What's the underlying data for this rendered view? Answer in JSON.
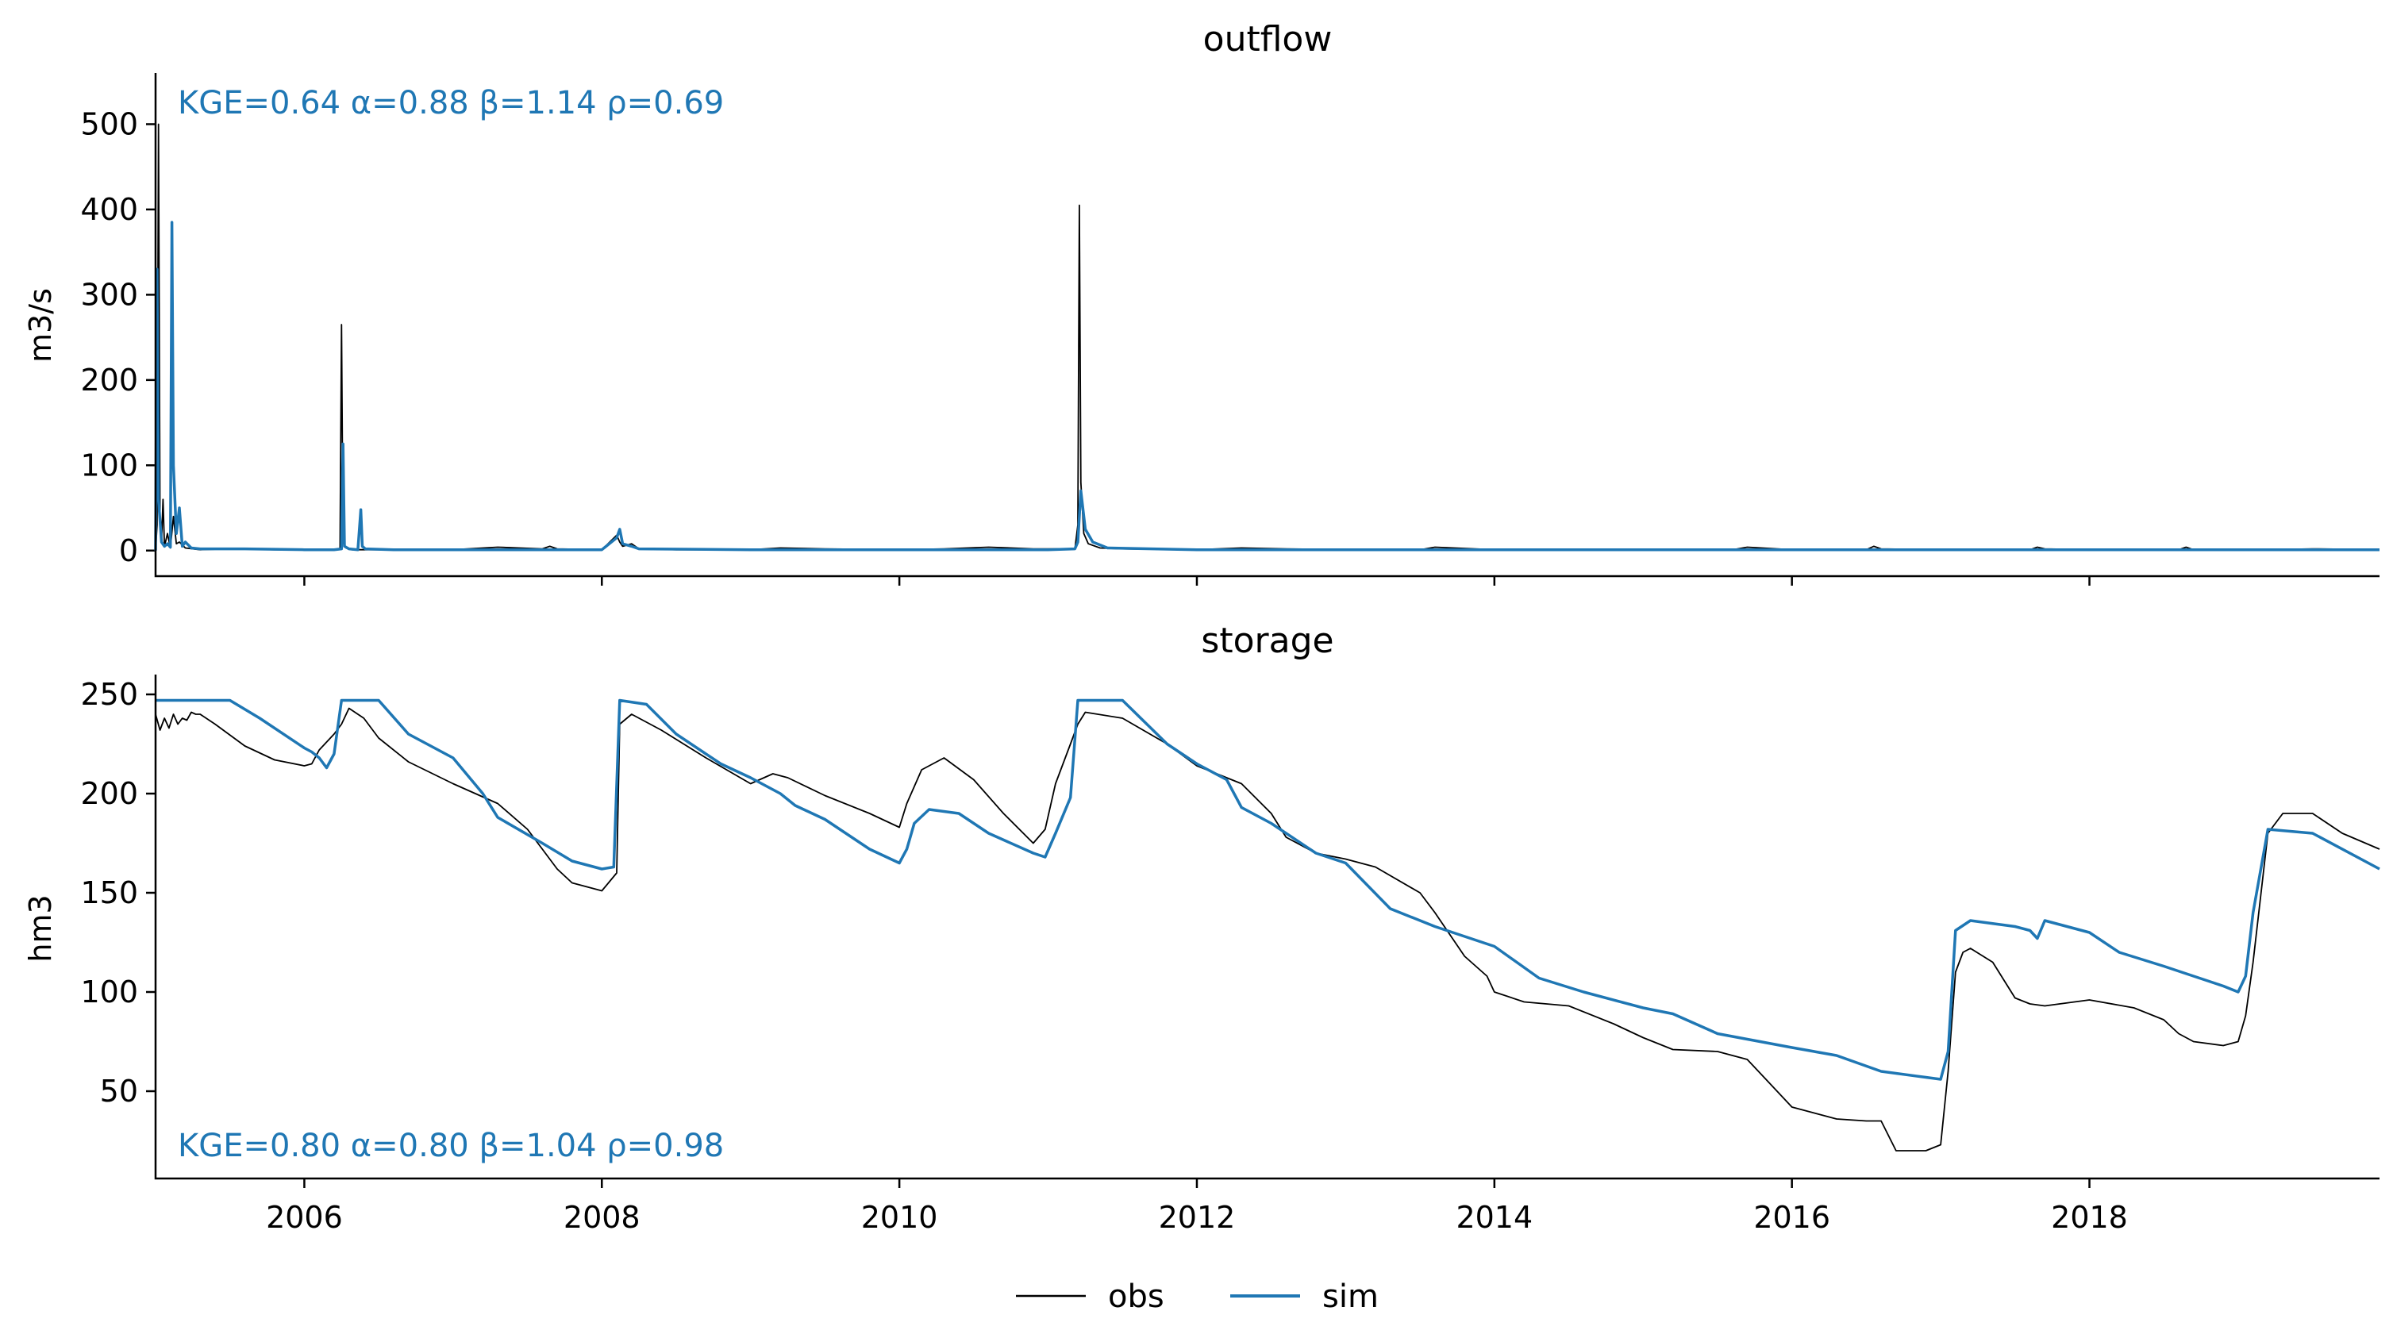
{
  "chart_data": [
    {
      "type": "line",
      "title": "outflow",
      "xlabel": "",
      "ylabel": "m3/s",
      "xlim": [
        2005.0,
        2019.95
      ],
      "ylim": [
        -30,
        560
      ],
      "yticks": [
        0,
        100,
        200,
        300,
        400,
        500
      ],
      "xticks": [
        2006,
        2008,
        2010,
        2012,
        2014,
        2016,
        2018
      ],
      "show_xtick_labels": false,
      "annotation": "KGE=0.64  α=0.88  β=1.14  ρ=0.69",
      "grid": false,
      "series": [
        {
          "name": "obs",
          "color": "#000000",
          "x": [
            2005.0,
            2005.01,
            2005.02,
            2005.03,
            2005.04,
            2005.05,
            2005.06,
            2005.08,
            2005.1,
            2005.12,
            2005.14,
            2005.16,
            2005.2,
            2005.3,
            2005.5,
            2005.8,
            2006.0,
            2006.2,
            2006.24,
            2006.25,
            2006.26,
            2006.28,
            2006.32,
            2006.5,
            2006.8,
            2007.0,
            2007.3,
            2007.6,
            2007.65,
            2007.7,
            2008.0,
            2008.1,
            2008.12,
            2008.14,
            2008.2,
            2008.25,
            2008.5,
            2008.8,
            2009.0,
            2009.2,
            2009.5,
            2010.0,
            2010.3,
            2010.6,
            2010.9,
            2011.18,
            2011.2,
            2011.21,
            2011.22,
            2011.24,
            2011.27,
            2011.35,
            2011.5,
            2012.0,
            2012.3,
            2012.6,
            2013.0,
            2013.5,
            2013.6,
            2014.0,
            2014.6,
            2015.0,
            2015.6,
            2015.7,
            2016.0,
            2016.5,
            2016.55,
            2016.6,
            2017.0,
            2017.6,
            2017.65,
            2017.7,
            2018.0,
            2018.6,
            2018.65,
            2018.7,
            2019.2,
            2019.5,
            2019.95
          ],
          "y": [
            0,
            30,
            500,
            40,
            10,
            60,
            5,
            20,
            3,
            40,
            8,
            10,
            3,
            1,
            2,
            1,
            1,
            1,
            2,
            265,
            10,
            3,
            1,
            1,
            1,
            1,
            4,
            2,
            5,
            2,
            1,
            18,
            10,
            5,
            8,
            2,
            1,
            1,
            1,
            3,
            2,
            1,
            2,
            4,
            2,
            2,
            30,
            405,
            80,
            20,
            8,
            3,
            2,
            1,
            3,
            2,
            1,
            1,
            4,
            1,
            1,
            1,
            1,
            4,
            1,
            1,
            5,
            2,
            1,
            1,
            4,
            2,
            1,
            1,
            4,
            1,
            1,
            2,
            1
          ]
        },
        {
          "name": "sim",
          "color": "#1f77b4",
          "x": [
            2005.0,
            2005.01,
            2005.02,
            2005.04,
            2005.06,
            2005.08,
            2005.1,
            2005.11,
            2005.12,
            2005.14,
            2005.16,
            2005.18,
            2005.2,
            2005.24,
            2005.3,
            2005.6,
            2006.0,
            2006.2,
            2006.25,
            2006.26,
            2006.27,
            2006.3,
            2006.36,
            2006.38,
            2006.39,
            2006.41,
            2006.6,
            2007.0,
            2008.0,
            2008.1,
            2008.12,
            2008.14,
            2008.2,
            2008.25,
            2009.0,
            2010.0,
            2011.0,
            2011.18,
            2011.2,
            2011.22,
            2011.25,
            2011.3,
            2011.4,
            2012.0,
            2014.0,
            2016.0,
            2018.0,
            2019.95
          ],
          "y": [
            0,
            330,
            60,
            10,
            5,
            8,
            4,
            385,
            100,
            20,
            50,
            5,
            10,
            3,
            2,
            2,
            1,
            1,
            2,
            125,
            5,
            2,
            1,
            48,
            5,
            2,
            1,
            1,
            1,
            15,
            25,
            8,
            5,
            2,
            1,
            1,
            1,
            2,
            10,
            70,
            25,
            10,
            3,
            1,
            1,
            1,
            1,
            1
          ]
        }
      ]
    },
    {
      "type": "line",
      "title": "storage",
      "xlabel": "",
      "ylabel": "hm3",
      "xlim": [
        2005.0,
        2019.95
      ],
      "ylim": [
        6,
        260
      ],
      "yticks": [
        50,
        100,
        150,
        200,
        250
      ],
      "xticks": [
        2006,
        2008,
        2010,
        2012,
        2014,
        2016,
        2018
      ],
      "xtick_labels": [
        "2006",
        "2008",
        "2010",
        "2012",
        "2014",
        "2016",
        "2018"
      ],
      "show_xtick_labels": true,
      "annotation": "KGE=0.80  α=0.80  β=1.04  ρ=0.98",
      "grid": false,
      "series": [
        {
          "name": "obs",
          "color": "#000000",
          "x": [
            2005.0,
            2005.03,
            2005.06,
            2005.09,
            2005.12,
            2005.15,
            2005.18,
            2005.21,
            2005.24,
            2005.27,
            2005.3,
            2005.4,
            2005.6,
            2005.8,
            2006.0,
            2006.05,
            2006.1,
            2006.2,
            2006.25,
            2006.3,
            2006.4,
            2006.5,
            2006.7,
            2007.0,
            2007.3,
            2007.5,
            2007.7,
            2007.8,
            2008.0,
            2008.1,
            2008.12,
            2008.2,
            2008.4,
            2008.7,
            2009.0,
            2009.15,
            2009.25,
            2009.5,
            2009.8,
            2010.0,
            2010.05,
            2010.15,
            2010.3,
            2010.5,
            2010.7,
            2010.9,
            2010.98,
            2011.05,
            2011.15,
            2011.2,
            2011.25,
            2011.5,
            2011.8,
            2012.0,
            2012.3,
            2012.5,
            2012.6,
            2012.8,
            2013.0,
            2013.2,
            2013.5,
            2013.6,
            2013.8,
            2013.95,
            2014.0,
            2014.2,
            2014.5,
            2014.8,
            2015.0,
            2015.2,
            2015.5,
            2015.7,
            2015.8,
            2016.0,
            2016.3,
            2016.5,
            2016.6,
            2016.7,
            2016.9,
            2017.0,
            2017.05,
            2017.1,
            2017.15,
            2017.2,
            2017.35,
            2017.5,
            2017.6,
            2017.7,
            2017.8,
            2018.0,
            2018.3,
            2018.5,
            2018.6,
            2018.7,
            2018.9,
            2019.0,
            2019.05,
            2019.1,
            2019.2,
            2019.3,
            2019.5,
            2019.7,
            2019.95
          ],
          "y": [
            240,
            232,
            238,
            233,
            240,
            235,
            238,
            237,
            241,
            240,
            240,
            235,
            224,
            217,
            214,
            215,
            222,
            230,
            235,
            243,
            238,
            228,
            216,
            205,
            195,
            182,
            162,
            155,
            151,
            160,
            235,
            240,
            232,
            218,
            205,
            210,
            208,
            199,
            190,
            183,
            195,
            212,
            218,
            207,
            190,
            175,
            182,
            205,
            225,
            235,
            241,
            238,
            225,
            214,
            205,
            190,
            178,
            170,
            167,
            163,
            150,
            140,
            118,
            108,
            100,
            95,
            93,
            84,
            77,
            71,
            70,
            66,
            58,
            42,
            36,
            35,
            35,
            20,
            20,
            23,
            60,
            110,
            120,
            122,
            115,
            97,
            94,
            93,
            94,
            96,
            92,
            86,
            79,
            75,
            73,
            75,
            88,
            115,
            180,
            190,
            190,
            180,
            172
          ]
        },
        {
          "name": "sim",
          "color": "#1f77b4",
          "x": [
            2005.0,
            2005.5,
            2005.7,
            2006.0,
            2006.05,
            2006.1,
            2006.15,
            2006.2,
            2006.25,
            2006.5,
            2006.7,
            2007.0,
            2007.2,
            2007.3,
            2007.6,
            2007.8,
            2008.0,
            2008.08,
            2008.12,
            2008.3,
            2008.5,
            2008.8,
            2009.0,
            2009.2,
            2009.3,
            2009.5,
            2009.8,
            2010.0,
            2010.05,
            2010.1,
            2010.2,
            2010.4,
            2010.6,
            2010.9,
            2010.98,
            2011.05,
            2011.15,
            2011.2,
            2011.22,
            2011.5,
            2011.8,
            2012.0,
            2012.2,
            2012.3,
            2012.5,
            2012.8,
            2013.0,
            2013.3,
            2013.6,
            2014.0,
            2014.3,
            2014.6,
            2015.0,
            2015.2,
            2015.5,
            2016.0,
            2016.3,
            2016.6,
            2016.9,
            2017.0,
            2017.05,
            2017.1,
            2017.2,
            2017.5,
            2017.6,
            2017.65,
            2017.7,
            2018.0,
            2018.2,
            2018.5,
            2018.9,
            2019.0,
            2019.05,
            2019.1,
            2019.2,
            2019.5,
            2019.95
          ],
          "y": [
            247,
            247,
            238,
            223,
            221,
            218,
            213,
            220,
            247,
            247,
            230,
            218,
            200,
            188,
            175,
            166,
            162,
            163,
            247,
            245,
            230,
            215,
            208,
            200,
            194,
            187,
            172,
            165,
            172,
            185,
            192,
            190,
            180,
            170,
            168,
            180,
            198,
            247,
            247,
            247,
            225,
            215,
            207,
            193,
            185,
            170,
            165,
            142,
            133,
            123,
            107,
            100,
            92,
            89,
            79,
            72,
            68,
            60,
            57,
            56,
            70,
            131,
            136,
            133,
            131,
            127,
            136,
            130,
            120,
            113,
            103,
            100,
            108,
            140,
            182,
            180,
            162
          ]
        }
      ]
    }
  ],
  "legend": {
    "placement": "bottom-center",
    "entries": [
      {
        "label": "obs",
        "color": "#000000"
      },
      {
        "label": "sim",
        "color": "#1f77b4"
      }
    ]
  }
}
